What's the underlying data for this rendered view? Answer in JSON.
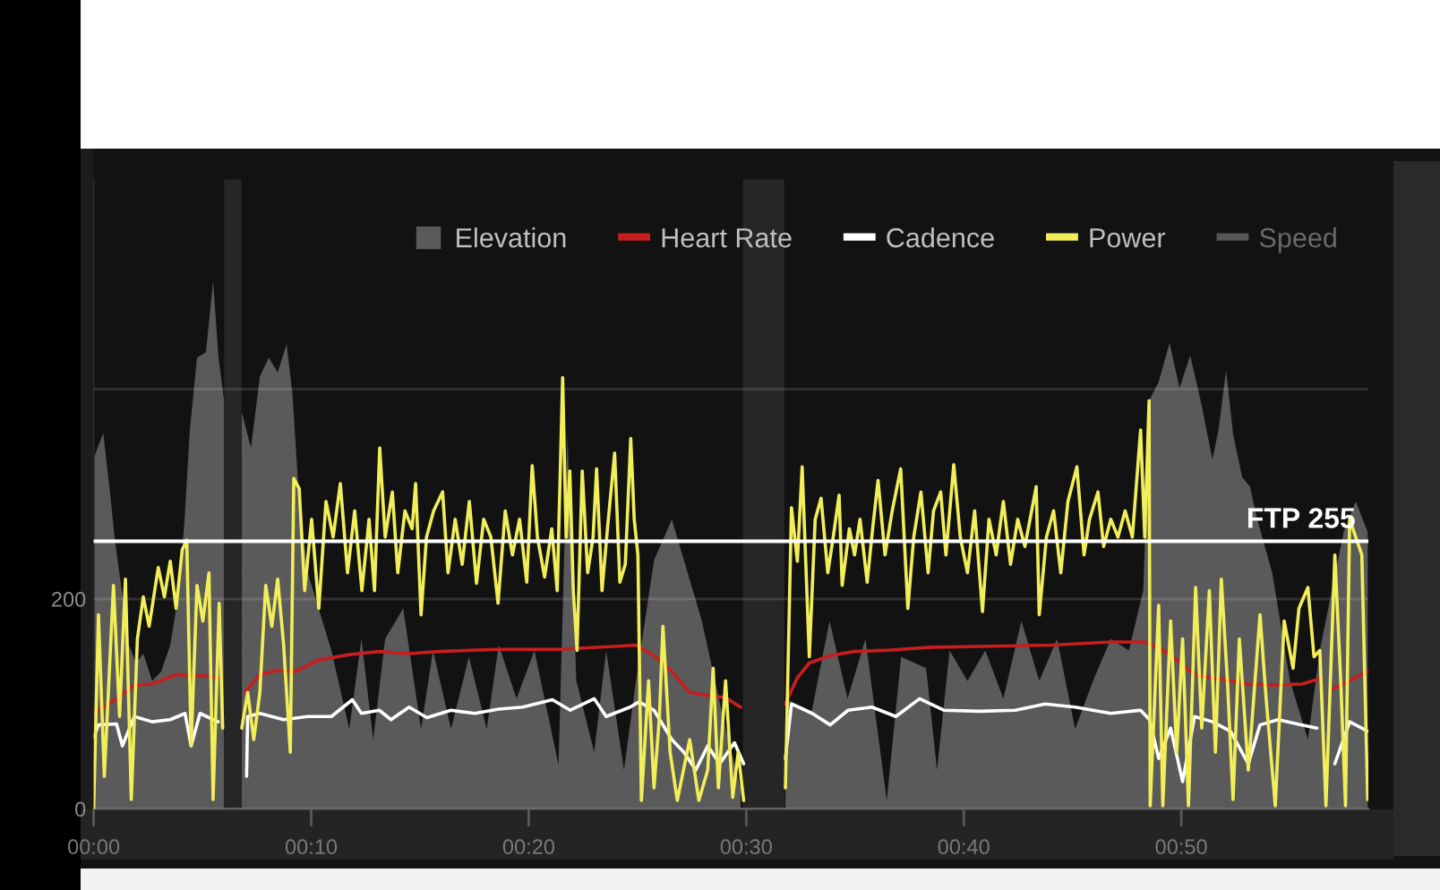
{
  "chart_data": {
    "type": "line",
    "xlim": [
      0,
      58.6
    ],
    "xticks": [
      {
        "value": 0,
        "label": "00:00"
      },
      {
        "value": 10,
        "label": "00:10"
      },
      {
        "value": 20,
        "label": "00:20"
      },
      {
        "value": 30,
        "label": "00:30"
      },
      {
        "value": 40,
        "label": "00:40"
      },
      {
        "value": 50,
        "label": "00:50"
      }
    ],
    "ylim": [
      0,
      600
    ],
    "yticks": [
      0,
      200,
      {
        "value": 400,
        "label": null
      }
    ],
    "grid": "y",
    "legend": "top right",
    "ref_lines": [
      {
        "axis": "y",
        "value": 255,
        "label": "FTP 255",
        "color": "#ffffff"
      }
    ],
    "bands": [
      {
        "axis": "x",
        "from": 6.0,
        "to": 6.8,
        "color": "#262626"
      },
      {
        "axis": "x",
        "from": 29.85,
        "to": 31.75,
        "color": "#262626"
      }
    ],
    "series": [
      {
        "name": "Elevation",
        "type": "area",
        "color": "#5a5a5a",
        "x": [
          0,
          0.44,
          0.77,
          0.96,
          1.29,
          1.62,
          1.95,
          2.28,
          2.69,
          3.11,
          3.52,
          3.93,
          4.18,
          4.42,
          4.75,
          5.16,
          5.49,
          5.74,
          5.99,
          6.4,
          6.81,
          7.23,
          7.64,
          8.05,
          8.46,
          8.87,
          9.14,
          9.45,
          9.84,
          10.93,
          11.75,
          12.31,
          12.85,
          13.4,
          14.23,
          15.05,
          15.6,
          16.43,
          17.25,
          18.07,
          18.62,
          19.44,
          20.26,
          21.37,
          21.78,
          22.19,
          23.01,
          23.56,
          24.38,
          24.93,
          25.76,
          26.58,
          27.96,
          29.05,
          29.74,
          30.8,
          31.8,
          33.01,
          33.83,
          34.66,
          35.48,
          36.46,
          37.12,
          38.27,
          38.77,
          39.35,
          40.17,
          40.99,
          41.82,
          42.65,
          43.47,
          44.29,
          45.12,
          45.94,
          46.76,
          47.59,
          48.25,
          48.55,
          48.96,
          49.46,
          49.92,
          50.41,
          50.88,
          51.43,
          51.71,
          52.06,
          52.39,
          52.8,
          53.16,
          53.49,
          54.18,
          55.0,
          55.82,
          56.37,
          56.92,
          57.47,
          58.02,
          58.57
        ],
        "values": [
          334,
          358,
          298,
          259,
          208,
          156,
          139,
          148,
          122,
          131,
          156,
          208,
          276,
          361,
          430,
          435,
          503,
          430,
          390,
          null,
          378,
          344,
          412,
          430,
          416,
          443,
          395,
          293,
          225,
          151,
          76,
          162,
          66,
          162,
          191,
          76,
          151,
          76,
          145,
          76,
          156,
          105,
          151,
          42,
          356,
          122,
          54,
          151,
          37,
          122,
          237,
          276,
          179,
          76,
          20,
          null,
          105,
          93,
          179,
          105,
          162,
          8,
          145,
          134,
          37,
          151,
          122,
          151,
          105,
          179,
          122,
          162,
          76,
          122,
          162,
          151,
          208,
          390,
          407,
          444,
          401,
          432,
          390,
          333,
          361,
          418,
          356,
          316,
          307,
          276,
          225,
          122,
          66,
          151,
          208,
          264,
          293,
          264
        ]
      },
      {
        "name": "Heart Rate",
        "color": "#c81e1e",
        "x": [
          0,
          1.05,
          1.87,
          2.69,
          3.79,
          4.89,
          5.91,
          6.4,
          6.95,
          7.64,
          8.46,
          9.28,
          10.38,
          11.75,
          13.13,
          14.5,
          15.87,
          17.25,
          18.62,
          21.37,
          24.11,
          24.93,
          25.76,
          26.58,
          27.4,
          28.23,
          29.05,
          29.74,
          30.8,
          31.8,
          32.35,
          32.9,
          33.86,
          34.96,
          36.33,
          38.53,
          41.27,
          44.02,
          46.76,
          48.27,
          48.96,
          49.79,
          50.61,
          51.71,
          53.08,
          54.18,
          55.55,
          56.37,
          56.65,
          56.92,
          57.74,
          58.57
        ],
        "values": [
          91,
          105,
          118,
          119,
          128,
          127,
          125,
          null,
          111,
          128,
          132,
          131,
          142,
          147,
          150,
          148,
          150,
          151,
          152,
          152,
          155,
          156,
          146,
          131,
          111,
          108,
          106,
          97,
          null,
          100,
          125,
          139,
          146,
          150,
          151,
          154,
          155,
          156,
          159,
          159,
          154,
          142,
          128,
          124,
          119,
          118,
          119,
          124,
          null,
          114,
          122,
          131
        ]
      },
      {
        "name": "Cadence",
        "color": "#ffffff",
        "x": [
          0,
          0.22,
          1.05,
          1.32,
          1.87,
          2.69,
          3.52,
          4.2,
          4.48,
          4.89,
          5.72,
          6.4,
          7.03,
          7.08,
          7.64,
          8.73,
          9.84,
          10.93,
          11.89,
          12.31,
          13.13,
          13.67,
          14.5,
          15.32,
          16.43,
          17.52,
          18.62,
          19.72,
          21.09,
          21.91,
          23.01,
          23.56,
          24.66,
          25.07,
          25.76,
          26.58,
          27.13,
          27.68,
          28.23,
          28.78,
          29.46,
          29.88,
          30.8,
          31.8,
          32.08,
          33.03,
          33.86,
          34.68,
          35.78,
          36.88,
          37.97,
          39.08,
          40.72,
          42.37,
          43.74,
          45.12,
          46.76,
          48.13,
          48.54,
          48.96,
          49.51,
          50.06,
          50.61,
          51.43,
          52.26,
          53.08,
          53.62,
          54.45,
          55.55,
          56.24,
          56.65,
          57.06,
          57.74,
          58.57
        ],
        "values": [
          68,
          80,
          81,
          60,
          88,
          83,
          85,
          91,
          60,
          91,
          83,
          null,
          31,
          88,
          91,
          85,
          88,
          88,
          104,
          91,
          94,
          85,
          97,
          87,
          94,
          91,
          95,
          97,
          104,
          94,
          105,
          88,
          97,
          102,
          94,
          66,
          54,
          37,
          60,
          43,
          63,
          43,
          null,
          48,
          100,
          91,
          80,
          94,
          97,
          88,
          105,
          94,
          93,
          94,
          100,
          97,
          91,
          94,
          85,
          48,
          77,
          26,
          88,
          83,
          74,
          43,
          80,
          85,
          80,
          77,
          null,
          43,
          83,
          74
        ]
      },
      {
        "name": "Power",
        "color": "#f2ee5a",
        "x": [
          0,
          0.22,
          0.49,
          0.91,
          1.19,
          1.46,
          1.73,
          2.01,
          2.28,
          2.55,
          2.97,
          3.25,
          3.52,
          3.79,
          4.07,
          4.28,
          4.48,
          4.75,
          5.02,
          5.3,
          5.49,
          5.77,
          5.93,
          6.4,
          6.81,
          7.08,
          7.36,
          7.64,
          7.91,
          8.19,
          8.46,
          8.73,
          9.04,
          9.2,
          9.45,
          9.7,
          10.02,
          10.35,
          10.68,
          11.01,
          11.34,
          11.67,
          12.0,
          12.33,
          12.66,
          12.91,
          13.15,
          13.4,
          13.73,
          13.98,
          14.31,
          14.64,
          14.8,
          15.05,
          15.3,
          15.63,
          16.04,
          16.29,
          16.62,
          16.94,
          17.27,
          17.6,
          17.93,
          18.26,
          18.59,
          18.92,
          19.25,
          19.58,
          19.91,
          20.16,
          20.4,
          20.73,
          21.06,
          21.31,
          21.56,
          21.72,
          21.89,
          22.05,
          22.22,
          22.46,
          22.71,
          22.96,
          23.12,
          23.37,
          23.62,
          23.95,
          24.19,
          24.44,
          24.69,
          24.85,
          25.02,
          25.18,
          25.51,
          25.76,
          26.01,
          26.17,
          26.5,
          26.83,
          27.4,
          27.82,
          28.23,
          28.48,
          28.72,
          29.05,
          29.38,
          29.63,
          29.88,
          30.8,
          31.8,
          32.08,
          32.35,
          32.57,
          32.9,
          33.17,
          33.44,
          33.75,
          34.0,
          34.27,
          34.41,
          34.74,
          34.98,
          35.23,
          35.56,
          35.81,
          36.06,
          36.38,
          36.71,
          37.1,
          37.43,
          37.7,
          38.03,
          38.36,
          38.61,
          38.94,
          39.18,
          39.54,
          39.84,
          40.17,
          40.5,
          40.86,
          41.16,
          41.49,
          41.82,
          42.15,
          42.48,
          42.81,
          43.33,
          43.47,
          43.8,
          44.13,
          44.46,
          44.79,
          45.2,
          45.53,
          45.78,
          46.17,
          46.43,
          46.76,
          47.09,
          47.42,
          47.75,
          48.13,
          48.32,
          48.52,
          48.57,
          48.96,
          49.15,
          49.51,
          49.79,
          50.06,
          50.33,
          50.66,
          50.94,
          51.29,
          51.57,
          51.84,
          52.12,
          52.38,
          52.67,
          53.08,
          53.62,
          53.9,
          54.32,
          54.73,
          55.14,
          55.41,
          55.82,
          56.1,
          56.37,
          56.65,
          57.06,
          57.33,
          57.55,
          57.74,
          58.02,
          58.3,
          58.57
        ],
        "values": [
          0,
          185,
          31,
          213,
          88,
          219,
          9,
          162,
          202,
          174,
          230,
          202,
          236,
          191,
          247,
          256,
          60,
          213,
          179,
          225,
          9,
          196,
          77,
          null,
          77,
          111,
          66,
          111,
          213,
          174,
          219,
          157,
          54,
          315,
          305,
          208,
          276,
          191,
          293,
          259,
          310,
          225,
          284,
          208,
          276,
          208,
          344,
          259,
          302,
          225,
          284,
          267,
          310,
          185,
          259,
          284,
          302,
          225,
          276,
          233,
          293,
          215,
          276,
          259,
          196,
          284,
          242,
          276,
          216,
          327,
          259,
          221,
          267,
          208,
          411,
          259,
          322,
          208,
          151,
          322,
          225,
          259,
          324,
          208,
          267,
          339,
          216,
          233,
          353,
          276,
          242,
          8,
          122,
          20,
          88,
          174,
          54,
          8,
          66,
          8,
          37,
          134,
          20,
          122,
          11,
          54,
          8,
          null,
          20,
          287,
          236,
          326,
          145,
          276,
          296,
          225,
          259,
          299,
          213,
          267,
          242,
          276,
          216,
          267,
          313,
          242,
          284,
          324,
          191,
          259,
          302,
          225,
          284,
          302,
          242,
          328,
          259,
          225,
          284,
          188,
          276,
          242,
          293,
          233,
          276,
          250,
          307,
          185,
          259,
          284,
          225,
          293,
          326,
          242,
          276,
          302,
          250,
          276,
          259,
          284,
          259,
          361,
          259,
          389,
          3,
          194,
          3,
          179,
          54,
          162,
          3,
          211,
          77,
          208,
          54,
          219,
          122,
          9,
          162,
          37,
          185,
          105,
          3,
          179,
          134,
          191,
          211,
          145,
          151,
          3,
          242,
          122,
          3,
          276,
          259,
          242,
          9
        ]
      },
      {
        "name": "Speed",
        "color": "#555555"
      }
    ]
  }
}
